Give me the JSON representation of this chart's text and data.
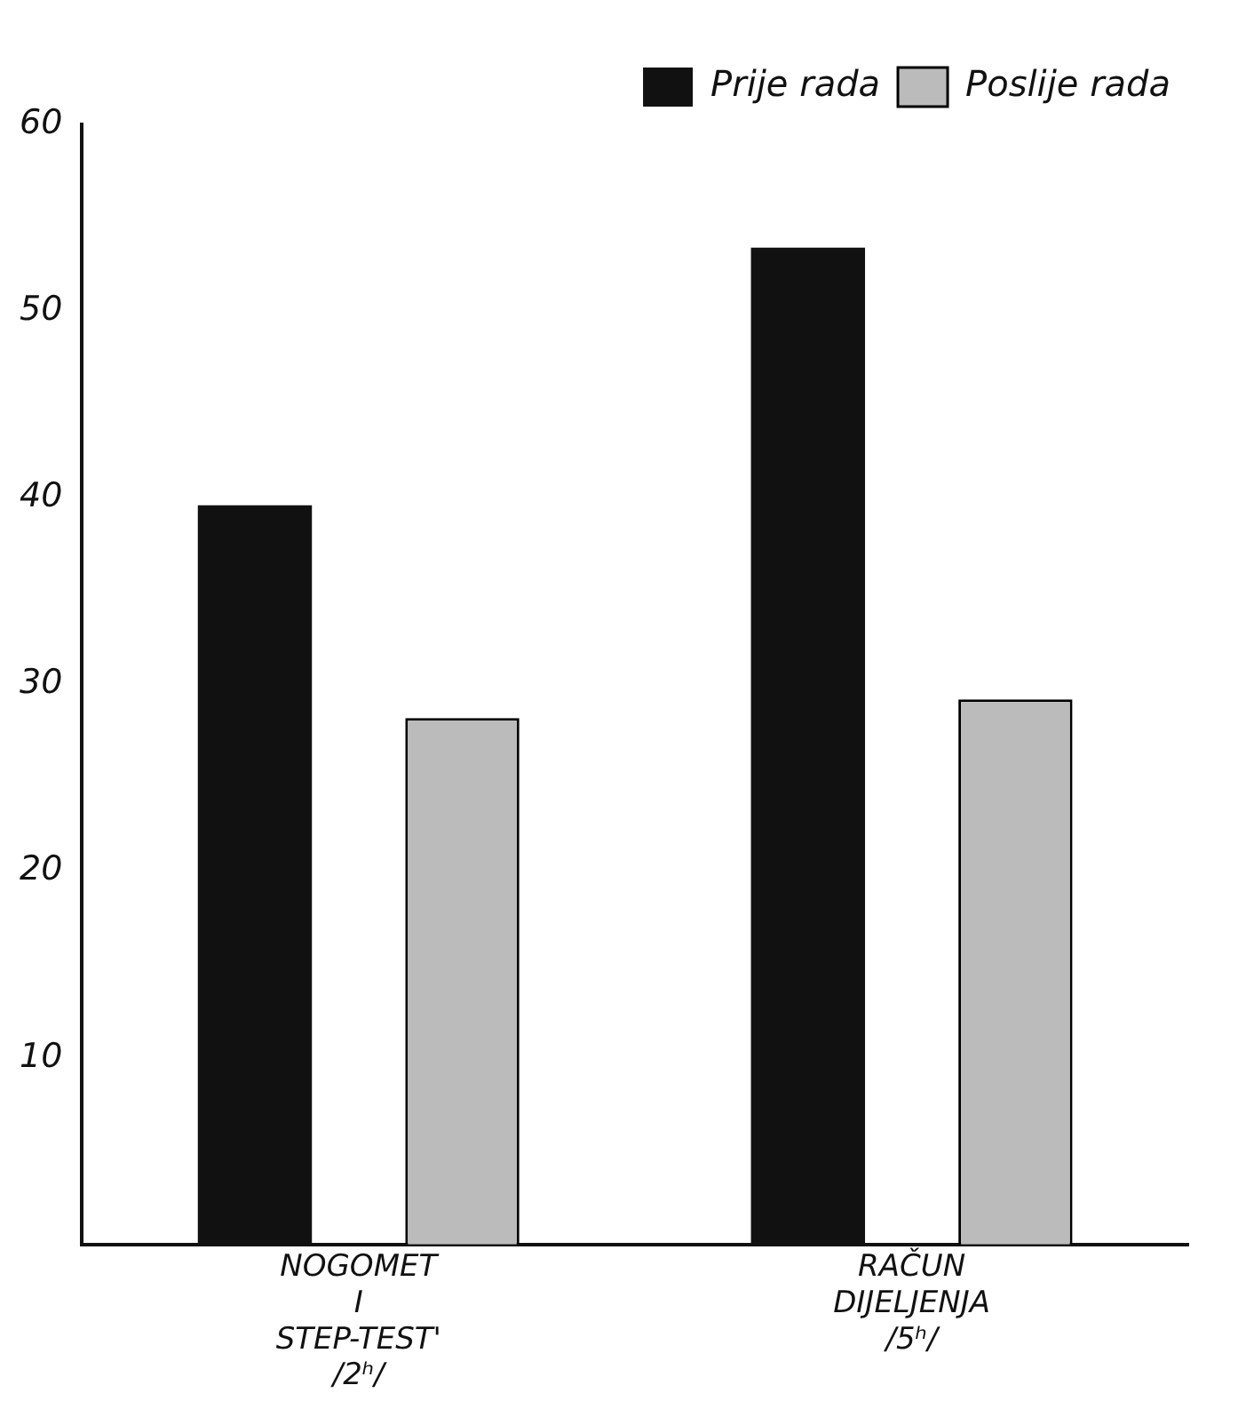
{
  "chart_data": {
    "type": "bar",
    "categories": [
      "NOGOMET\nI\nSTEP-TEST'\n/2ʰ/",
      "RAČUN\nDIJELJENJA\n/5ʰ/"
    ],
    "series": [
      {
        "name": "Prije rada",
        "color": "#111111",
        "values": [
          39.6,
          53.4
        ]
      },
      {
        "name": "Poslije rada",
        "color": "#bbbbbb",
        "values": [
          28.2,
          29.2
        ]
      }
    ],
    "ylim": [
      0,
      60
    ],
    "yticks": [
      10,
      20,
      30,
      40,
      50,
      60
    ],
    "grid": false,
    "legend": "top right"
  }
}
